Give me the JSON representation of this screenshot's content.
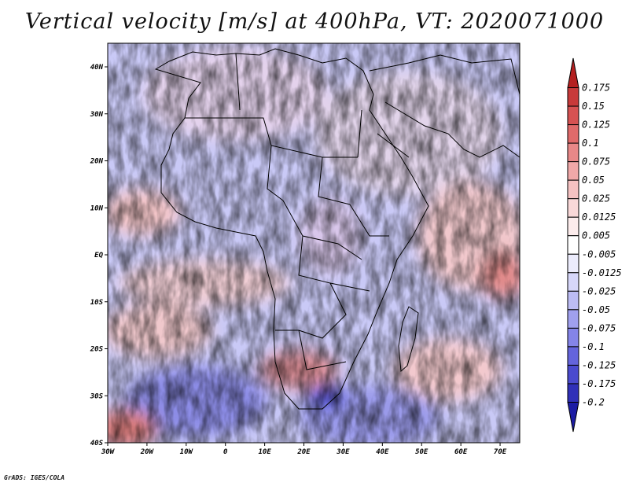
{
  "title": "Vertical velocity [m/s] at 400hPa, VT: 2020071000",
  "footer": "GrADS: IGES/COLA",
  "map": {
    "lon_labels": [
      "30W",
      "20W",
      "10W",
      "0",
      "10E",
      "20E",
      "30E",
      "40E",
      "50E",
      "60E",
      "70E"
    ],
    "lat_labels": [
      "40N",
      "30N",
      "20N",
      "10N",
      "EQ",
      "10S",
      "20S",
      "30S",
      "40S"
    ]
  },
  "colorbar": {
    "labels": [
      "0.175",
      "0.15",
      "0.125",
      "0.1",
      "0.075",
      "0.05",
      "0.025",
      "0.0125",
      "0.005",
      "-0.005",
      "-0.0125",
      "-0.025",
      "-0.05",
      "-0.075",
      "-0.1",
      "-0.125",
      "-0.175",
      "-0.2"
    ],
    "colors": [
      "#b42020",
      "#c83a3a",
      "#d65252",
      "#e06a6a",
      "#e88888",
      "#f0a8a8",
      "#f5c2c2",
      "#f9d8d8",
      "#fcecec",
      "#ffffff",
      "#ececfc",
      "#d6d6f9",
      "#bcbcf4",
      "#a0a0ee",
      "#8484e8",
      "#6464dc",
      "#4a4ace",
      "#3030b8",
      "#1c1ca4"
    ]
  }
}
